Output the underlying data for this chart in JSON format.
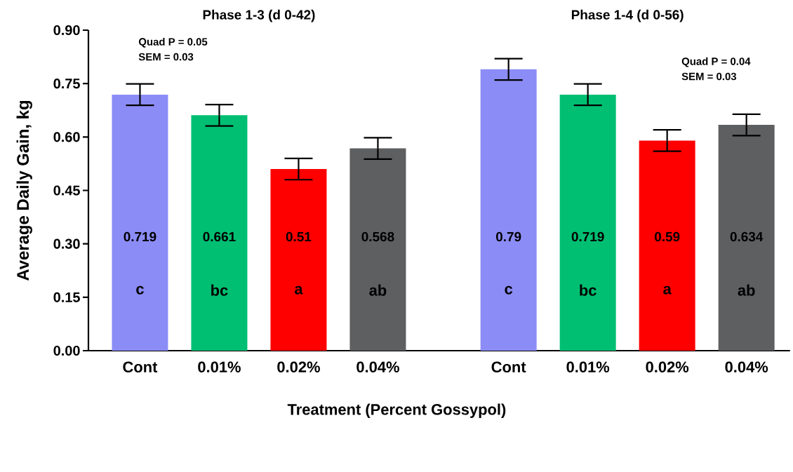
{
  "chart_data": [
    {
      "type": "bar",
      "title": "Phase 1-3 (d 0-42)",
      "xlabel": "Treatment (Percent Gossypol)",
      "ylabel": "Average Daily Gain, kg",
      "categories": [
        "Cont",
        "0.01%",
        "0.02%",
        "0.04%"
      ],
      "values": [
        0.719,
        0.661,
        0.51,
        0.568
      ],
      "colors": [
        "#8c8cf7",
        "#00bf72",
        "#ff0000",
        "#5e5f61"
      ],
      "errors": [
        0.03,
        0.03,
        0.03,
        0.03
      ],
      "data_labels": true,
      "ylim": [
        0,
        0.9
      ],
      "yticks": [
        {
          "value": 0,
          "label": "0.00"
        },
        {
          "value": 0.15,
          "label": "0.15"
        },
        {
          "value": 0.3,
          "label": "0.30"
        },
        {
          "value": 0.45,
          "label": "0.45"
        },
        {
          "value": 0.6,
          "label": "0.60"
        },
        {
          "value": 0.75,
          "label": "0.75"
        },
        {
          "value": 0.9,
          "label": "0.90"
        }
      ],
      "annotations": [
        "Quad P = 0.05",
        "SEM = 0.03",
        "c",
        "bc",
        "a",
        "ab"
      ]
    },
    {
      "type": "bar",
      "title": "Phase 1-4 (d 0-56)",
      "categories": [
        "Cont",
        "0.01%",
        "0.02%",
        "0.04%"
      ],
      "values": [
        0.79,
        0.719,
        0.59,
        0.634
      ],
      "colors": [
        "#8c8cf7",
        "#00bf72",
        "#ff0000",
        "#5e5f61"
      ],
      "errors": [
        0.03,
        0.03,
        0.03,
        0.03
      ],
      "data_labels": true,
      "ylim": [
        0,
        0.9
      ],
      "tick_labels": "x",
      "annotations": [
        "Quad  P = 0.04",
        "SEM = 0.03",
        "c",
        "bc",
        "a",
        "ab"
      ]
    }
  ]
}
